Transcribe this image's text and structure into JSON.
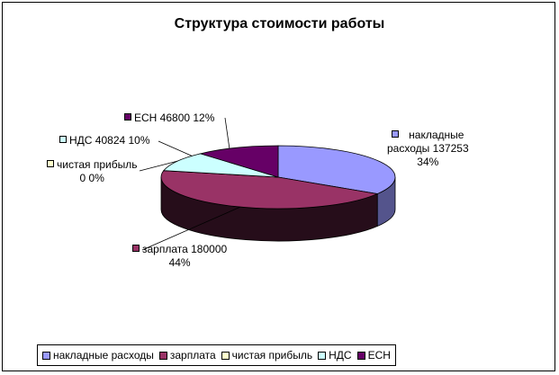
{
  "chart_data": {
    "type": "pie",
    "title": "Структура стоимости работы",
    "is_3d": true,
    "legend_position": "bottom",
    "slices": [
      {
        "name": "накладные расходы",
        "value": 137253,
        "percent": "34%",
        "color": "#9999ff",
        "label_line1": "накладные",
        "label_line2": "расходы 137253",
        "label_line3": "34%"
      },
      {
        "name": "зарплата",
        "value": 180000,
        "percent": "44%",
        "color": "#993366",
        "label_line1": "зарплата 180000",
        "label_line2": "44%"
      },
      {
        "name": "чистая прибыль",
        "value": 0,
        "percent": "0%",
        "color": "#ffffcc",
        "label_line1": "чистая прибыль",
        "label_line2": "0 0%"
      },
      {
        "name": "НДС",
        "value": 40824,
        "percent": "10%",
        "color": "#ccffff",
        "label_line1": "НДС 40824 10%"
      },
      {
        "name": "ЕСН",
        "value": 46800,
        "percent": "12%",
        "color": "#660066",
        "label_line1": "ЕСН 46800 12%"
      }
    ]
  }
}
